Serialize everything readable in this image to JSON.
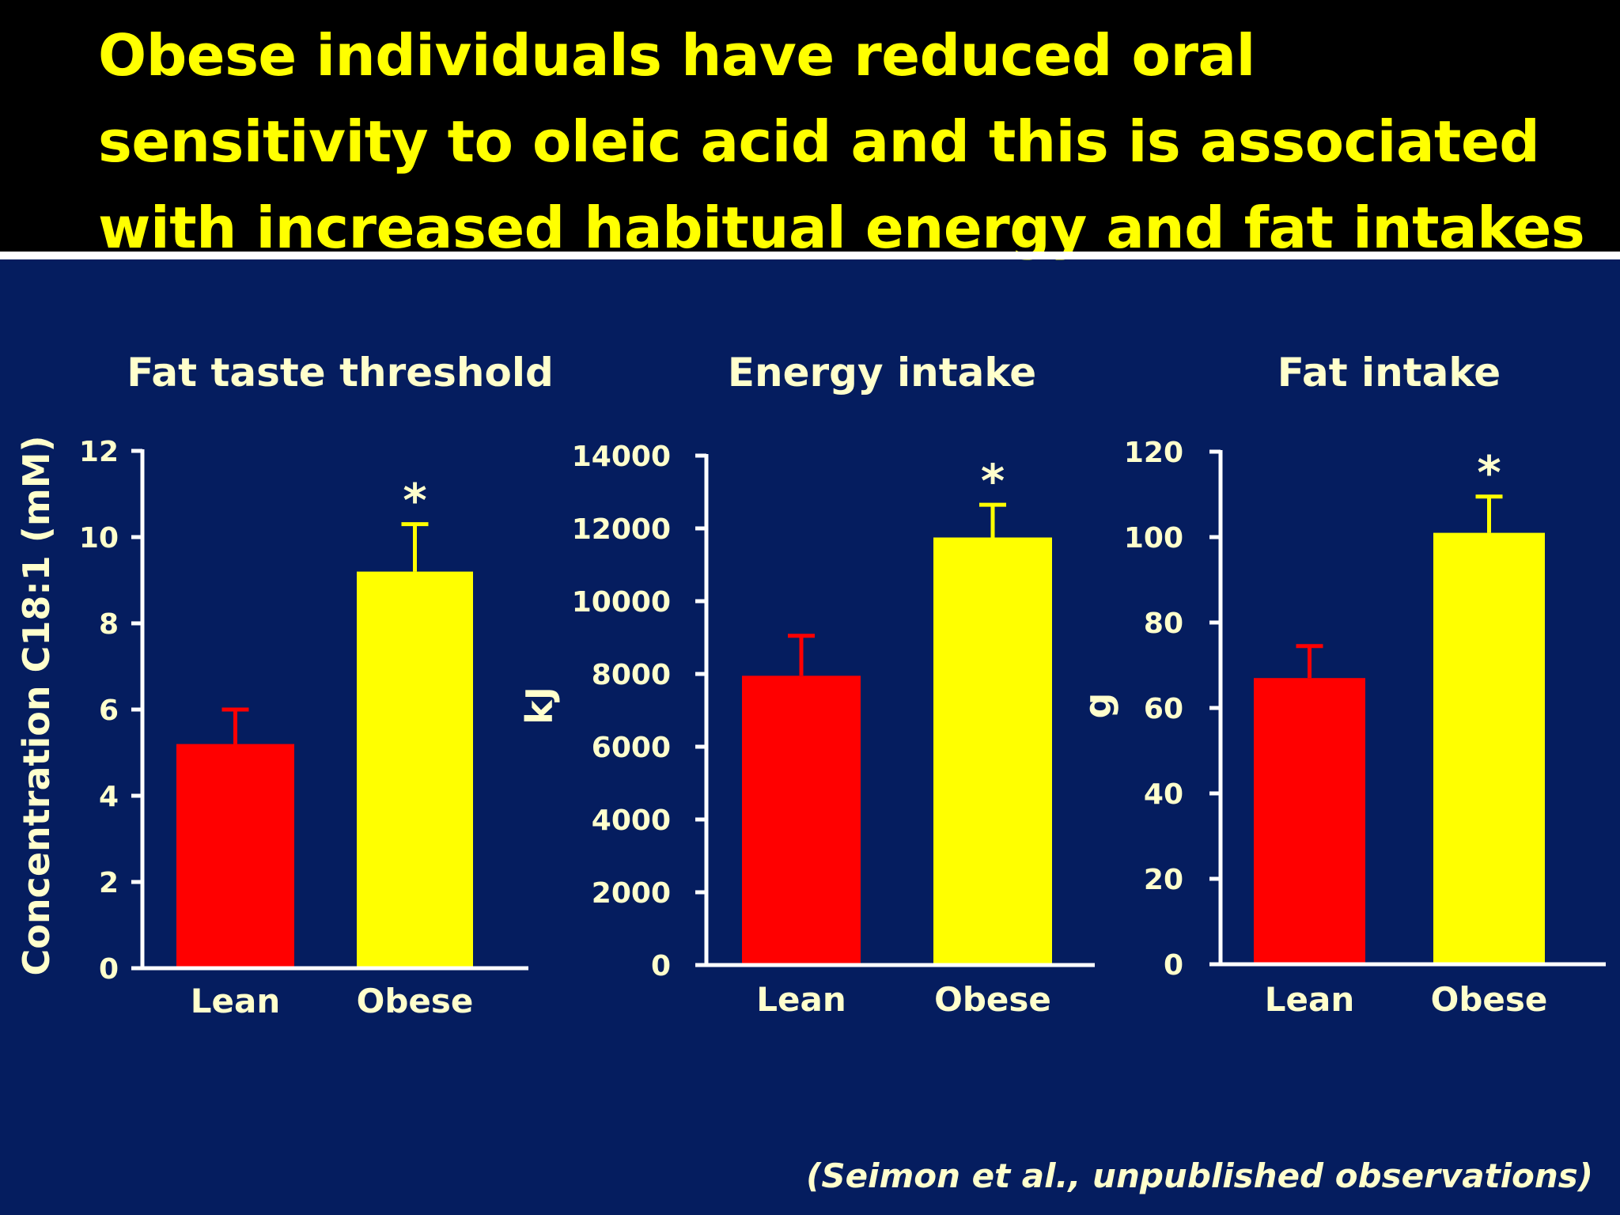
{
  "slide": {
    "title": "Obese individuals have reduced oral sensitivity to oleic acid and this is associated with increased habitual energy and fat intakes",
    "citation": "(Seimon et al., unpublished observations)",
    "colors": {
      "background": "#051d5f",
      "title_band": "#000000",
      "title_text": "#ffff00",
      "chart_text": "#ffffcc",
      "axis": "#ffffff"
    }
  },
  "chart_data": [
    {
      "type": "bar",
      "title": "Fat taste threshold",
      "ylabel": "Concentration C18:1 (mM)",
      "xlabel": "",
      "categories": [
        "Lean",
        "Obese"
      ],
      "values": [
        5.2,
        9.2
      ],
      "error": [
        0.8,
        1.1
      ],
      "bar_colors": [
        "#ff0000",
        "#ffff00"
      ],
      "significance": [
        "",
        "*"
      ],
      "ylim": [
        0,
        12
      ],
      "yticks": [
        0,
        2,
        4,
        6,
        8,
        10,
        12
      ],
      "yticklabels": [
        "0",
        "2",
        "4",
        "6",
        "8",
        "10",
        "12"
      ],
      "grid": false,
      "legend": "none"
    },
    {
      "type": "bar",
      "title": "Energy intake",
      "ylabel": "kJ",
      "xlabel": "",
      "categories": [
        "Lean",
        "Obese"
      ],
      "values": [
        7950,
        11750
      ],
      "error": [
        1100,
        900
      ],
      "bar_colors": [
        "#ff0000",
        "#ffff00"
      ],
      "significance": [
        "",
        "*"
      ],
      "ylim": [
        0,
        14000
      ],
      "yticks": [
        0,
        2000,
        4000,
        6000,
        8000,
        10000,
        12000,
        14000
      ],
      "yticklabels": [
        "0",
        "2000",
        "4000",
        "6000",
        "8000",
        "10000",
        "12000",
        "14000"
      ],
      "grid": false,
      "legend": "none"
    },
    {
      "type": "bar",
      "title": "Fat intake",
      "ylabel": "g",
      "xlabel": "",
      "categories": [
        "Lean",
        "Obese"
      ],
      "values": [
        67,
        101
      ],
      "error": [
        7.5,
        8.5
      ],
      "bar_colors": [
        "#ff0000",
        "#ffff00"
      ],
      "significance": [
        "",
        "*"
      ],
      "ylim": [
        0,
        120
      ],
      "yticks": [
        0,
        20,
        40,
        60,
        80,
        100,
        120
      ],
      "yticklabels": [
        "0",
        "20",
        "40",
        "60",
        "80",
        "100",
        "120"
      ],
      "grid": false,
      "legend": "none"
    }
  ]
}
